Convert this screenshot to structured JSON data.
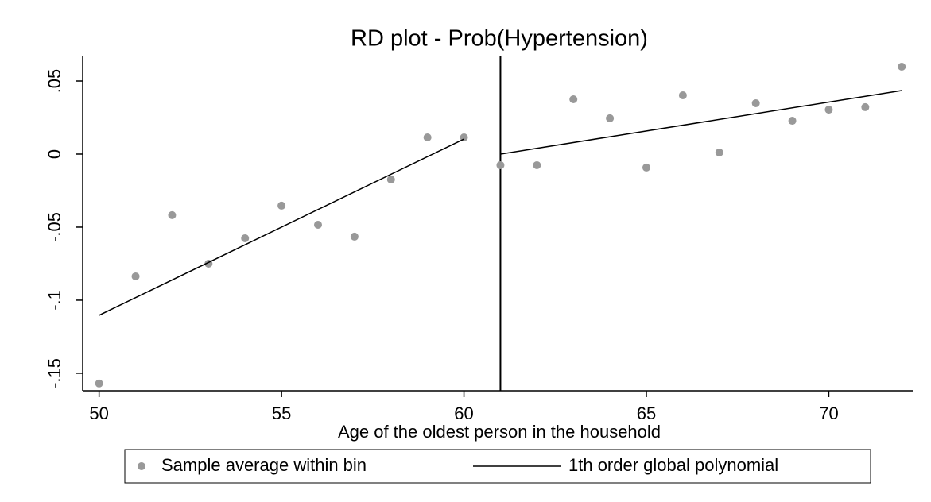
{
  "chart_data": {
    "type": "scatter",
    "title": "RD plot - Prob(Hypertension)",
    "x_label": "Age of the oldest person in the household",
    "xlim": [
      49.55,
      72.3
    ],
    "xticks": [
      50,
      55,
      60,
      65,
      70
    ],
    "ylim": [
      -0.162,
      0.0674
    ],
    "yticks": [
      {
        "value": -0.15,
        "label": "-.15"
      },
      {
        "value": -0.1,
        "label": "-.1"
      },
      {
        "value": -0.05,
        "label": "-.05"
      },
      0,
      {
        "value": 0.05,
        "label": ".05"
      }
    ],
    "cutoff": 61,
    "legend": "bottom",
    "series": [
      {
        "name": "Sample average within bin",
        "kind": "points",
        "color": "#999999",
        "x": [
          50,
          51,
          52,
          53,
          54,
          55,
          56,
          57,
          58,
          59,
          60,
          61,
          62,
          63,
          64,
          65,
          66,
          67,
          68,
          69,
          70,
          71,
          72
        ],
        "values": [
          -0.157,
          -0.0837,
          -0.0418,
          -0.075,
          -0.0576,
          -0.0353,
          -0.0484,
          -0.0565,
          -0.0174,
          0.0114,
          0.0114,
          -0.0076,
          -0.0076,
          0.0375,
          0.0245,
          -0.0092,
          0.0402,
          0.0011,
          0.0348,
          0.0228,
          0.0304,
          0.0321,
          0.0598
        ]
      },
      {
        "name": "1th order global polynomial",
        "kind": "line",
        "color": "#000000",
        "x": [
          50,
          60,
          null,
          61,
          72
        ],
        "values": [
          -0.1103,
          0.0103,
          null,
          0,
          0.0435
        ]
      }
    ]
  }
}
